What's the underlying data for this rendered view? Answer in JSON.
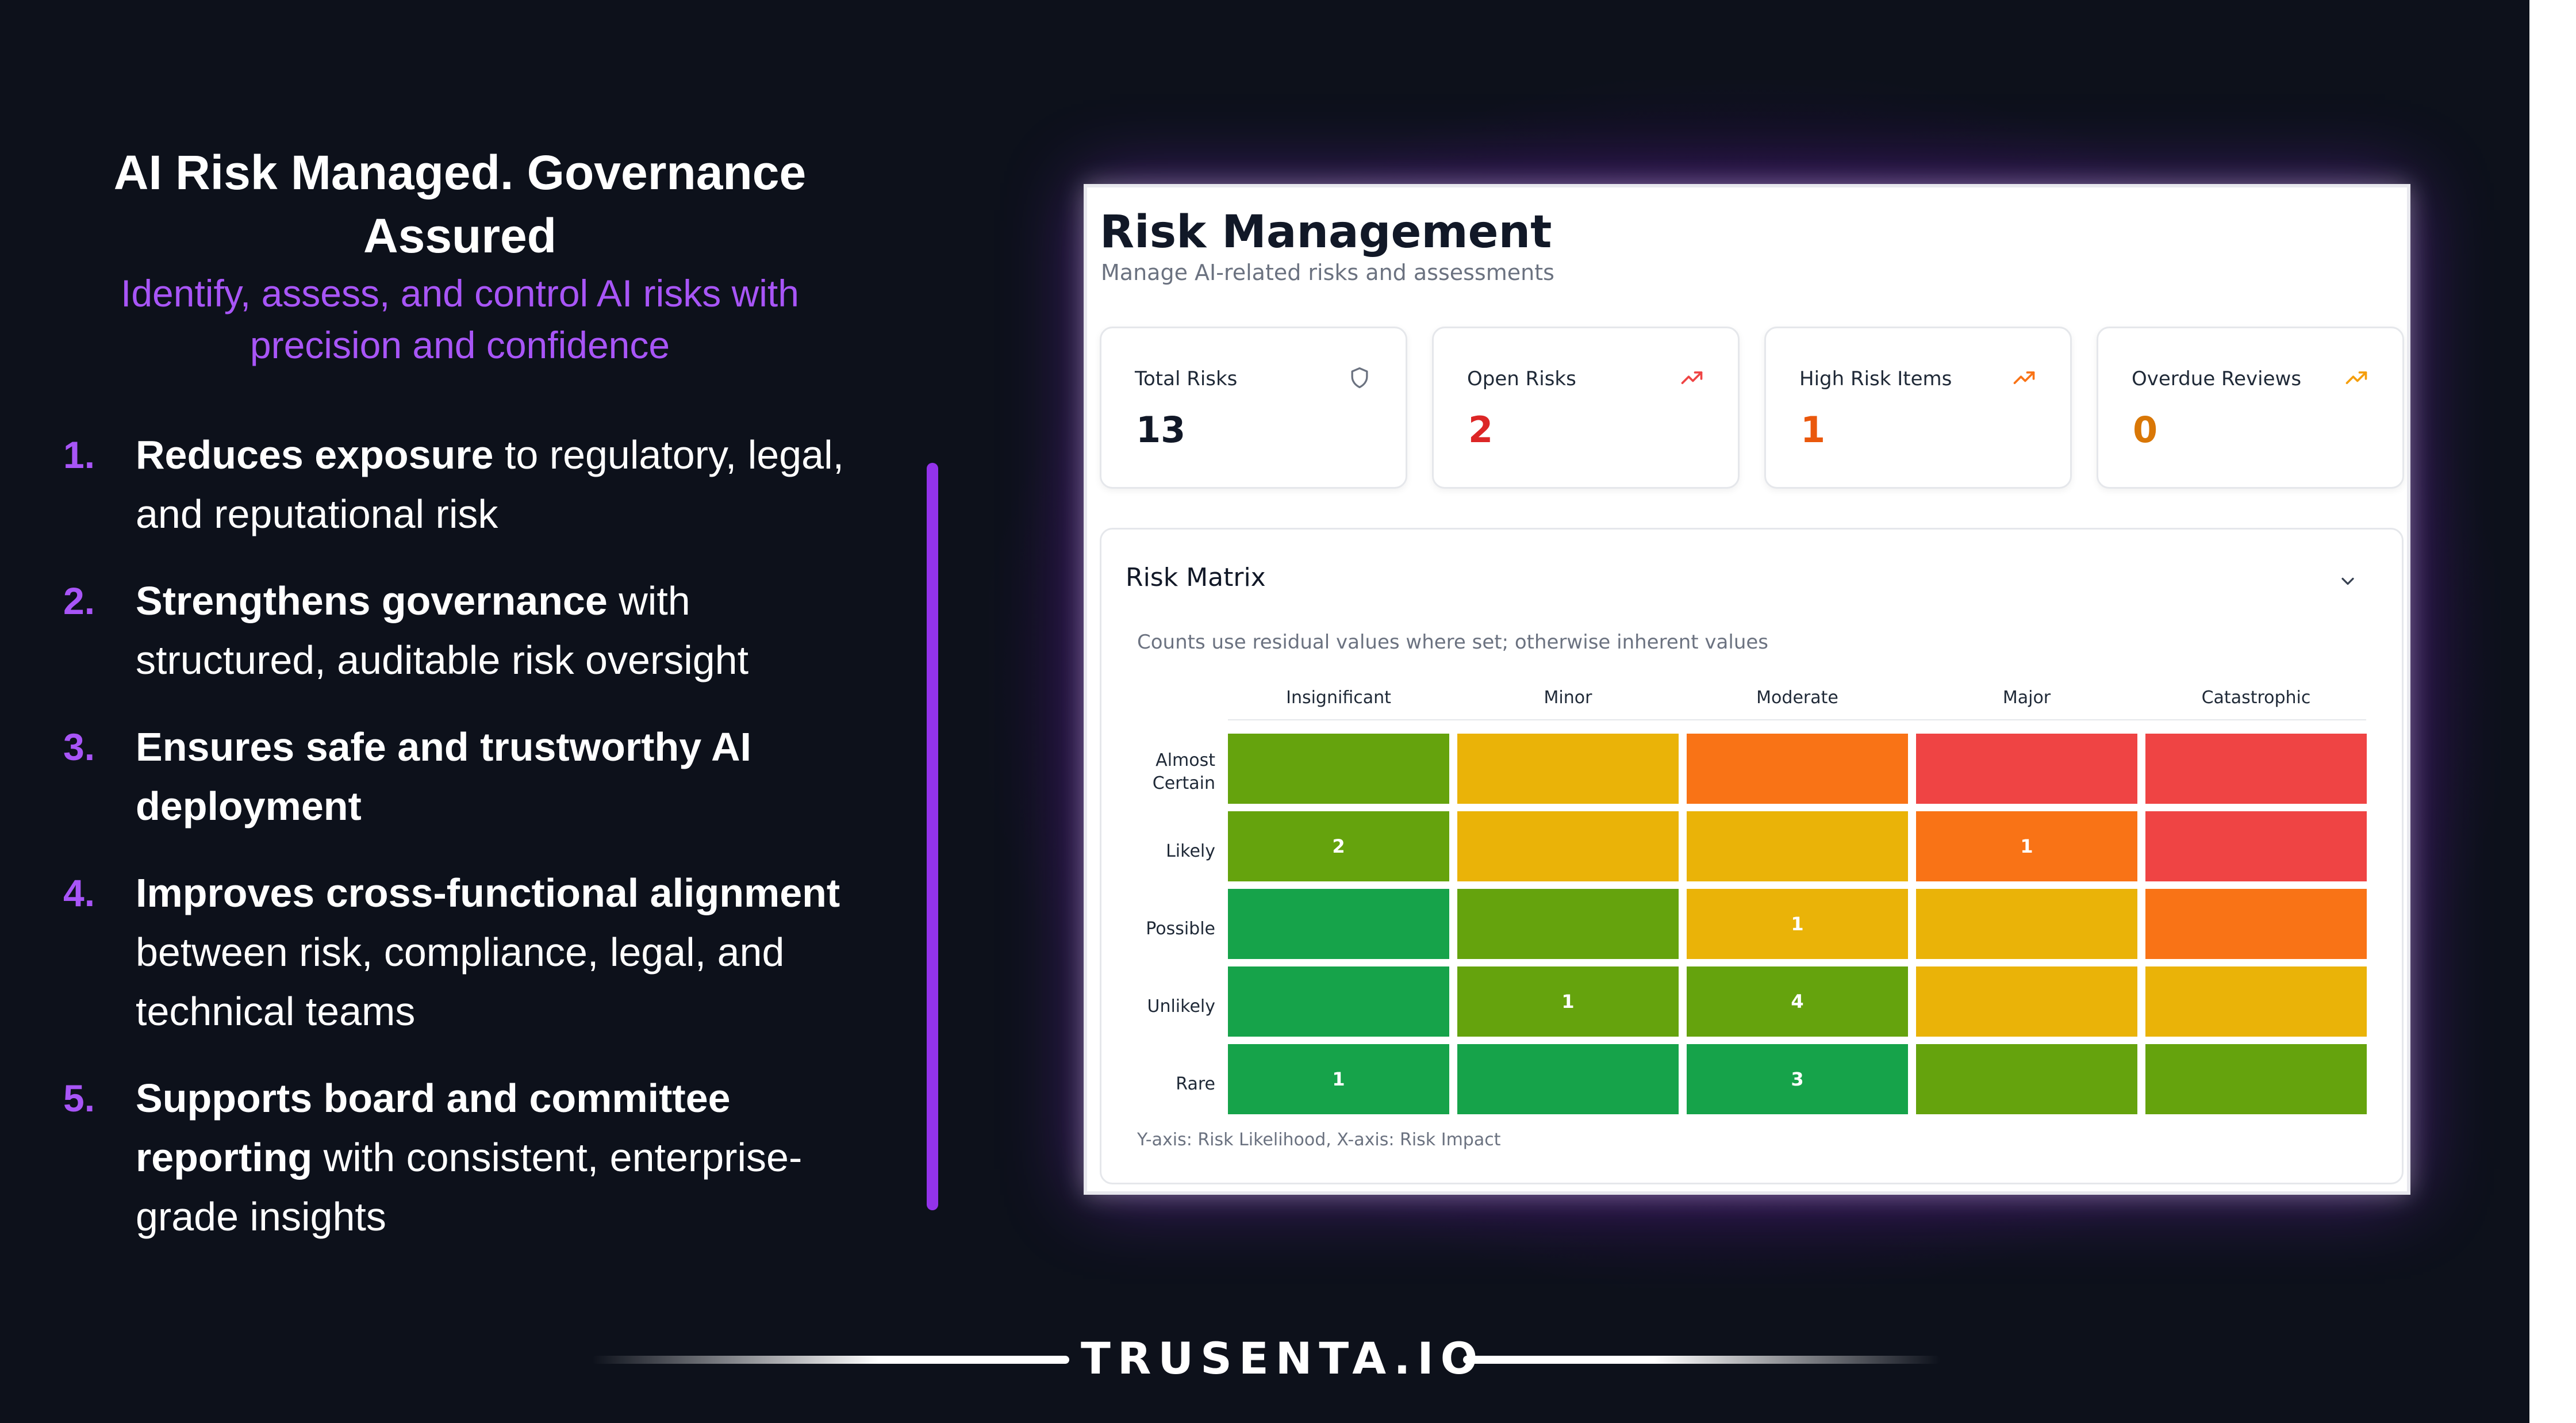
{
  "slide": {
    "title": "AI Risk Managed. Governance Assured",
    "subtitle": "Identify, assess, and control AI risks with precision and confidence",
    "benefits": [
      {
        "number": "1.",
        "bold": "Reduces exposure",
        "rest": " to regulatory, legal, and reputational risk"
      },
      {
        "number": "2.",
        "bold": "Strengthens governance",
        "rest": " with structured, auditable risk oversight"
      },
      {
        "number": "3.",
        "bold": "Ensures safe and trustworthy AI deployment",
        "rest": ""
      },
      {
        "number": "4.",
        "bold": "Improves cross-functional alignment",
        "rest": " between risk, compliance, legal, and technical teams"
      },
      {
        "number": "5.",
        "bold": "Supports board and committee reporting",
        "rest": " with consistent, enterprise-grade insights"
      }
    ],
    "brand": "TRUSENTA.IO",
    "accent_color": "#a855f7"
  },
  "app": {
    "title": "Risk Management",
    "subtitle": "Manage AI-related risks and assessments",
    "stats": [
      {
        "label": "Total Risks",
        "value": "13",
        "icon": "shield-icon",
        "color": "#111827"
      },
      {
        "label": "Open Risks",
        "value": "2",
        "icon": "trending-up-icon",
        "color": "#dc2626"
      },
      {
        "label": "High Risk Items",
        "value": "1",
        "icon": "trending-up-icon",
        "color": "#ea580c"
      },
      {
        "label": "Overdue Reviews",
        "value": "0",
        "icon": "trending-up-icon",
        "color": "#d97706"
      }
    ],
    "matrix": {
      "title": "Risk Matrix",
      "note": "Counts use residual values where set; otherwise inherent values",
      "footer": "Y-axis: Risk Likelihood, X-axis: Risk Impact",
      "columns": [
        "Insignificant",
        "Minor",
        "Moderate",
        "Major",
        "Catastrophic"
      ],
      "rows": [
        {
          "label_lines": [
            "Almost",
            "Certain"
          ],
          "cells": [
            {
              "color": "#65a30d",
              "count": ""
            },
            {
              "color": "#eab308",
              "count": ""
            },
            {
              "color": "#f97316",
              "count": ""
            },
            {
              "color": "#ef4444",
              "count": ""
            },
            {
              "color": "#ef4444",
              "count": ""
            }
          ]
        },
        {
          "label_lines": [
            "Likely"
          ],
          "cells": [
            {
              "color": "#65a30d",
              "count": "2"
            },
            {
              "color": "#eab308",
              "count": ""
            },
            {
              "color": "#eab308",
              "count": ""
            },
            {
              "color": "#f97316",
              "count": "1"
            },
            {
              "color": "#ef4444",
              "count": ""
            }
          ]
        },
        {
          "label_lines": [
            "Possible"
          ],
          "cells": [
            {
              "color": "#16a34a",
              "count": ""
            },
            {
              "color": "#65a30d",
              "count": ""
            },
            {
              "color": "#eab308",
              "count": "1"
            },
            {
              "color": "#eab308",
              "count": ""
            },
            {
              "color": "#f97316",
              "count": ""
            }
          ]
        },
        {
          "label_lines": [
            "Unlikely"
          ],
          "cells": [
            {
              "color": "#16a34a",
              "count": ""
            },
            {
              "color": "#65a30d",
              "count": "1"
            },
            {
              "color": "#65a30d",
              "count": "4"
            },
            {
              "color": "#eab308",
              "count": ""
            },
            {
              "color": "#eab308",
              "count": ""
            }
          ]
        },
        {
          "label_lines": [
            "Rare"
          ],
          "cells": [
            {
              "color": "#16a34a",
              "count": "1"
            },
            {
              "color": "#16a34a",
              "count": ""
            },
            {
              "color": "#16a34a",
              "count": "3"
            },
            {
              "color": "#65a30d",
              "count": ""
            },
            {
              "color": "#65a30d",
              "count": ""
            }
          ]
        }
      ]
    }
  }
}
